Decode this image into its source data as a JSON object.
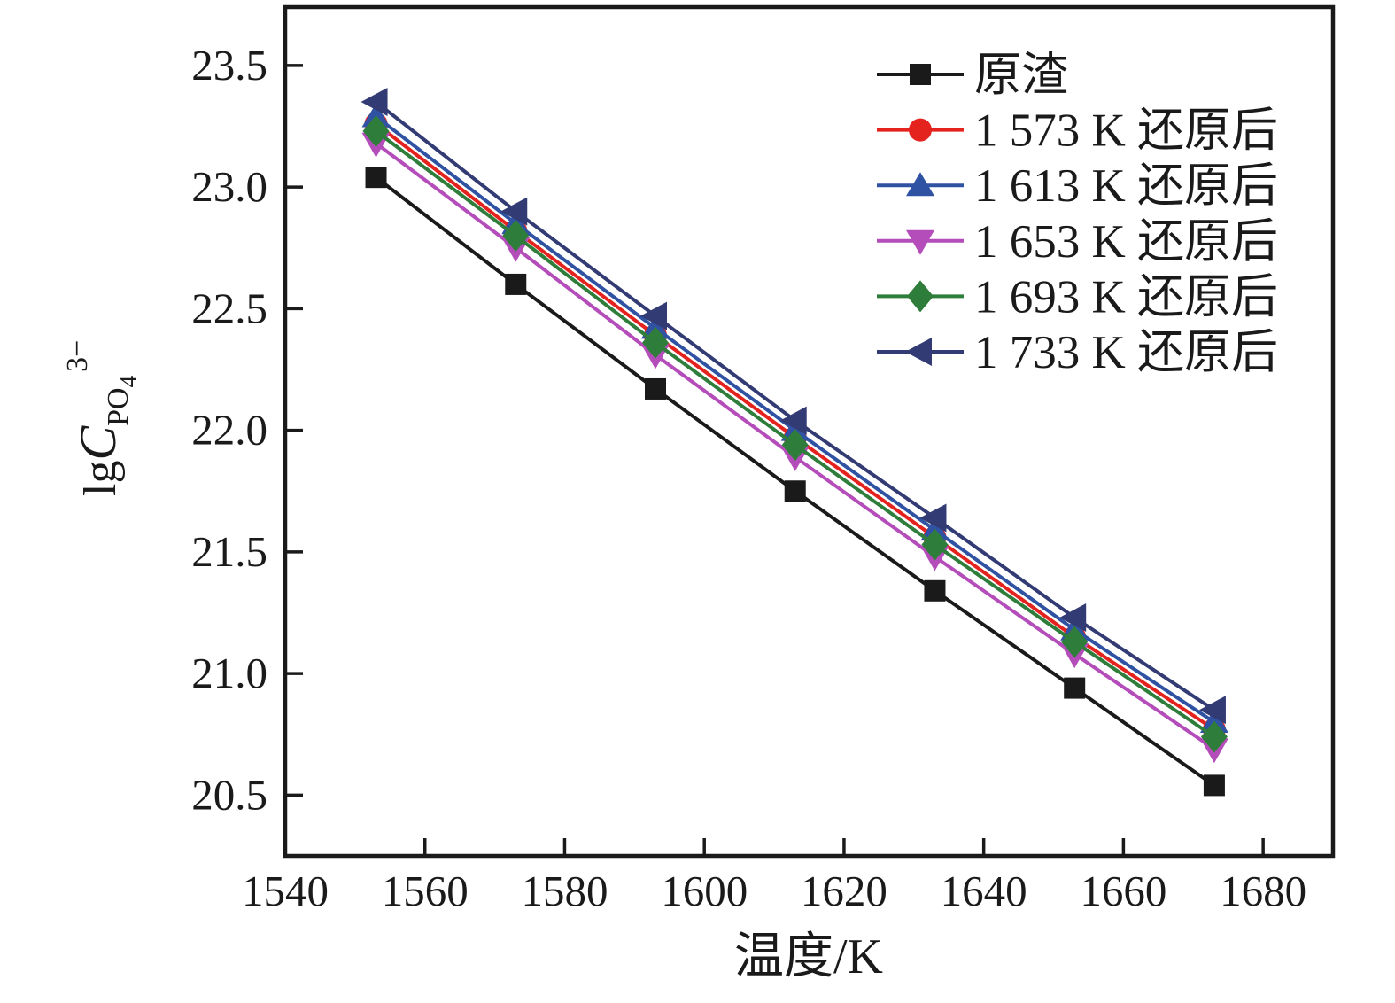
{
  "chart_data": {
    "type": "line",
    "title": "",
    "xlabel": "温度/K",
    "ylabel_parts": {
      "prefix": "lg",
      "variable": "C",
      "subscript": "PO",
      "subsubscript": "4",
      "superscript": "3−"
    },
    "xlim": [
      1540,
      1690
    ],
    "ylim": [
      20.25,
      23.74
    ],
    "x_ticks": [
      1540,
      1560,
      1580,
      1600,
      1620,
      1640,
      1660,
      1680
    ],
    "y_ticks": [
      20.5,
      21.0,
      21.5,
      22.0,
      22.5,
      23.0,
      23.5
    ],
    "grid": false,
    "legend_position": "top-right",
    "x": [
      1553,
      1573,
      1593,
      1613,
      1633,
      1653,
      1673
    ],
    "series": [
      {
        "name": "原渣",
        "color": "#1a1a1a",
        "marker": "square",
        "values": [
          23.04,
          22.6,
          22.17,
          21.75,
          21.34,
          20.94,
          20.54
        ]
      },
      {
        "name": "1 573 K 还原后",
        "color": "#e4231f",
        "marker": "circle",
        "values": [
          23.26,
          22.82,
          22.39,
          21.97,
          21.56,
          21.15,
          20.77
        ]
      },
      {
        "name": "1 613 K 还原后",
        "color": "#3052a3",
        "marker": "triangle-up",
        "values": [
          23.29,
          22.85,
          22.42,
          22.0,
          21.59,
          21.18,
          20.8
        ]
      },
      {
        "name": "1 653 K 还原后",
        "color": "#b44dba",
        "marker": "triangle-down",
        "values": [
          23.18,
          22.75,
          22.31,
          21.89,
          21.48,
          21.08,
          20.69
        ]
      },
      {
        "name": "1 693 K 还原后",
        "color": "#2f7d3b",
        "marker": "diamond",
        "values": [
          23.23,
          22.8,
          22.36,
          21.94,
          21.53,
          21.13,
          20.74
        ]
      },
      {
        "name": "1 733 K 还原后",
        "color": "#333b74",
        "marker": "triangle-left",
        "values": [
          23.35,
          22.9,
          22.47,
          22.04,
          21.64,
          21.23,
          20.85
        ]
      }
    ],
    "axis_color": "#1a1a1a"
  }
}
